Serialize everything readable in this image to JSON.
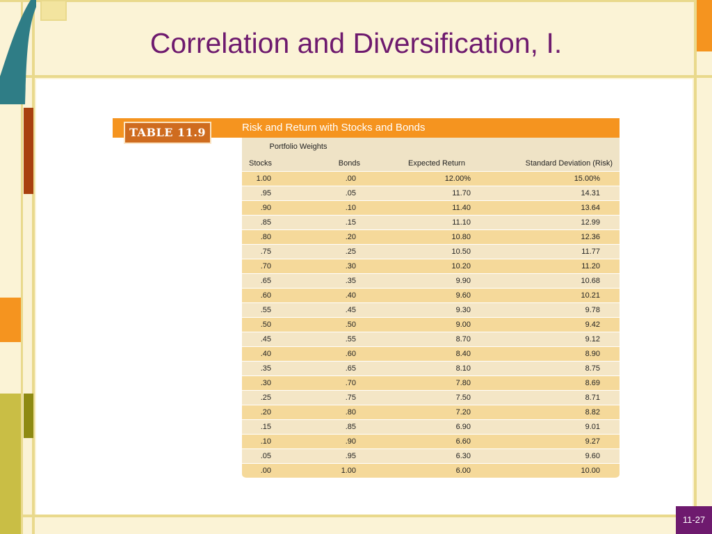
{
  "slide": {
    "title": "Correlation and Diversification, I.",
    "page_number": "11-27"
  },
  "table": {
    "tag": "TABLE 11.9",
    "caption": "Risk and Return with Stocks and Bonds",
    "group_header": "Portfolio Weights",
    "columns": [
      "Stocks",
      "Bonds",
      "Expected Return",
      "Standard Deviation (Risk)"
    ],
    "rows": [
      [
        "1.00",
        ".00",
        "12.00%",
        "15.00%"
      ],
      [
        ".95",
        ".05",
        "11.70",
        "14.31"
      ],
      [
        ".90",
        ".10",
        "11.40",
        "13.64"
      ],
      [
        ".85",
        ".15",
        "11.10",
        "12.99"
      ],
      [
        ".80",
        ".20",
        "10.80",
        "12.36"
      ],
      [
        ".75",
        ".25",
        "10.50",
        "11.77"
      ],
      [
        ".70",
        ".30",
        "10.20",
        "11.20"
      ],
      [
        ".65",
        ".35",
        "9.90",
        "10.68"
      ],
      [
        ".60",
        ".40",
        "9.60",
        "10.21"
      ],
      [
        ".55",
        ".45",
        "9.30",
        "9.78"
      ],
      [
        ".50",
        ".50",
        "9.00",
        "9.42"
      ],
      [
        ".45",
        ".55",
        "8.70",
        "9.12"
      ],
      [
        ".40",
        ".60",
        "8.40",
        "8.90"
      ],
      [
        ".35",
        ".65",
        "8.10",
        "8.75"
      ],
      [
        ".30",
        ".70",
        "7.80",
        "8.69"
      ],
      [
        ".25",
        ".75",
        "7.50",
        "8.71"
      ],
      [
        ".20",
        ".80",
        "7.20",
        "8.82"
      ],
      [
        ".15",
        ".85",
        "6.90",
        "9.01"
      ],
      [
        ".10",
        ".90",
        "6.60",
        "9.27"
      ],
      [
        ".05",
        ".95",
        "6.30",
        "9.60"
      ],
      [
        ".00",
        "1.00",
        "6.00",
        "10.00"
      ]
    ]
  },
  "colors": {
    "title": "#6e1a6e",
    "header_bar": "#f5941f",
    "tag": "#cf6c1f",
    "row_odd": "#f5d99a",
    "row_even": "#f4e6c6"
  }
}
